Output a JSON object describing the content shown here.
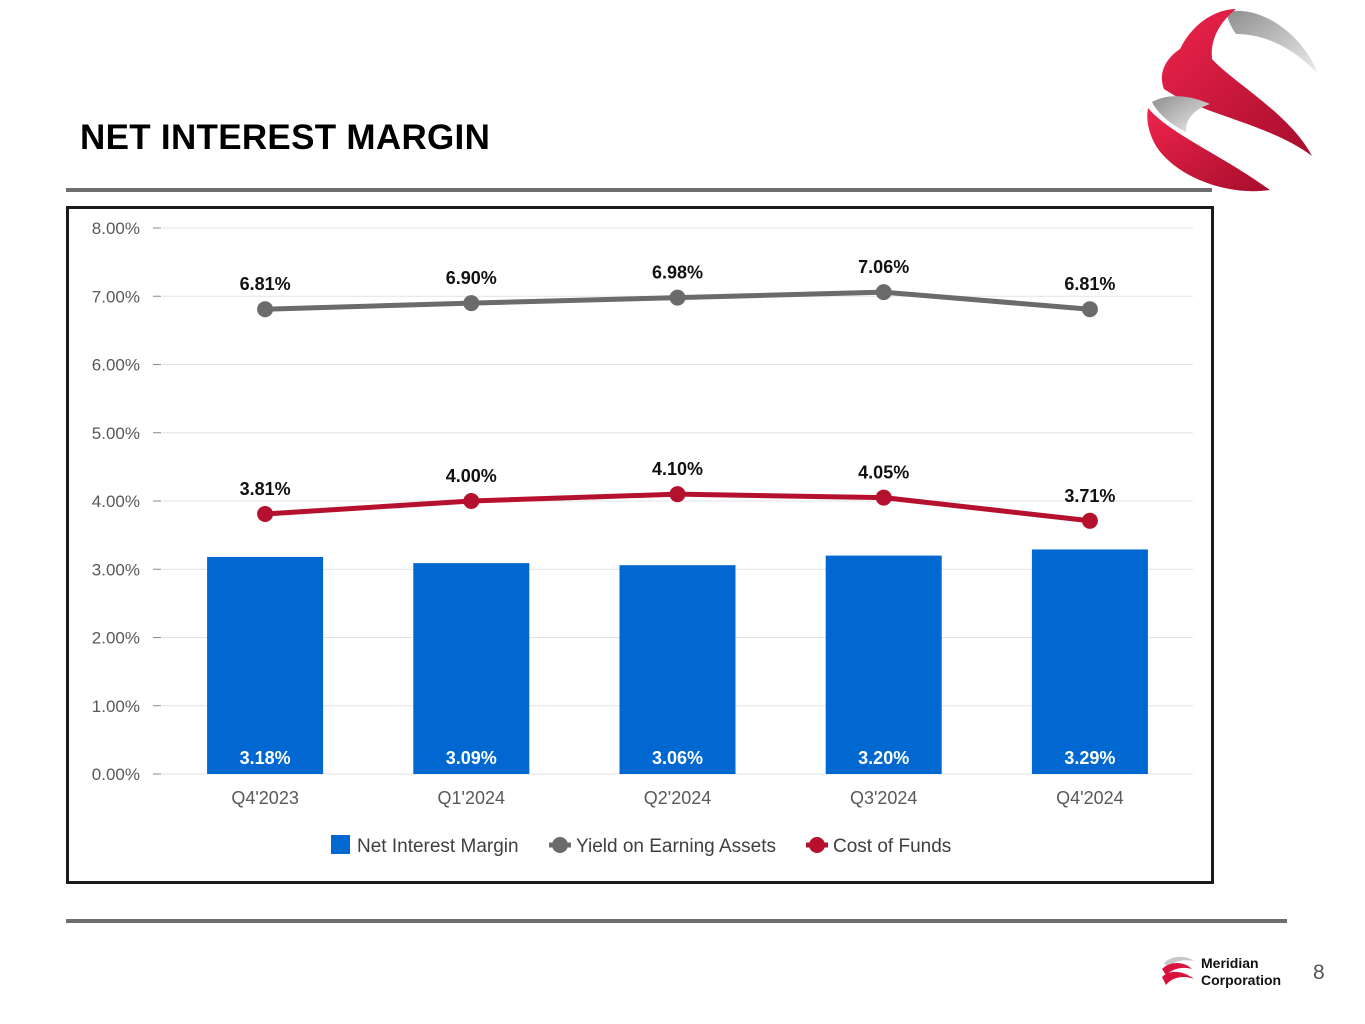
{
  "slide": {
    "title": "NET INTEREST MARGIN",
    "company_line1": "Meridian",
    "company_line2": "Corporation",
    "page_number": "8"
  },
  "colors": {
    "bar": "#0068D0",
    "yield_line": "#6B6B6B",
    "cost_line": "#B5112F",
    "brand_red": "#D8143C"
  },
  "chart_data": {
    "type": "bar",
    "categories": [
      "Q4'2023",
      "Q1'2024",
      "Q2'2024",
      "Q3'2024",
      "Q4'2024"
    ],
    "ylim": [
      0,
      8
    ],
    "yticks": [
      "0.00%",
      "1.00%",
      "2.00%",
      "3.00%",
      "4.00%",
      "5.00%",
      "6.00%",
      "7.00%",
      "8.00%"
    ],
    "grid": true,
    "legend_position": "bottom",
    "series": [
      {
        "name": "Net Interest Margin",
        "type": "bar",
        "values": [
          3.18,
          3.09,
          3.06,
          3.2,
          3.29
        ],
        "labels": [
          "3.18%",
          "3.09%",
          "3.06%",
          "3.20%",
          "3.29%"
        ]
      },
      {
        "name": "Yield on Earning Assets",
        "type": "line",
        "values": [
          6.81,
          6.9,
          6.98,
          7.06,
          6.81
        ],
        "labels": [
          "6.81%",
          "6.90%",
          "6.98%",
          "7.06%",
          "6.81%"
        ]
      },
      {
        "name": "Cost of Funds",
        "type": "line",
        "values": [
          3.81,
          4.0,
          4.1,
          4.05,
          3.71
        ],
        "labels": [
          "3.81%",
          "4.00%",
          "4.10%",
          "4.05%",
          "3.71%"
        ]
      }
    ]
  }
}
